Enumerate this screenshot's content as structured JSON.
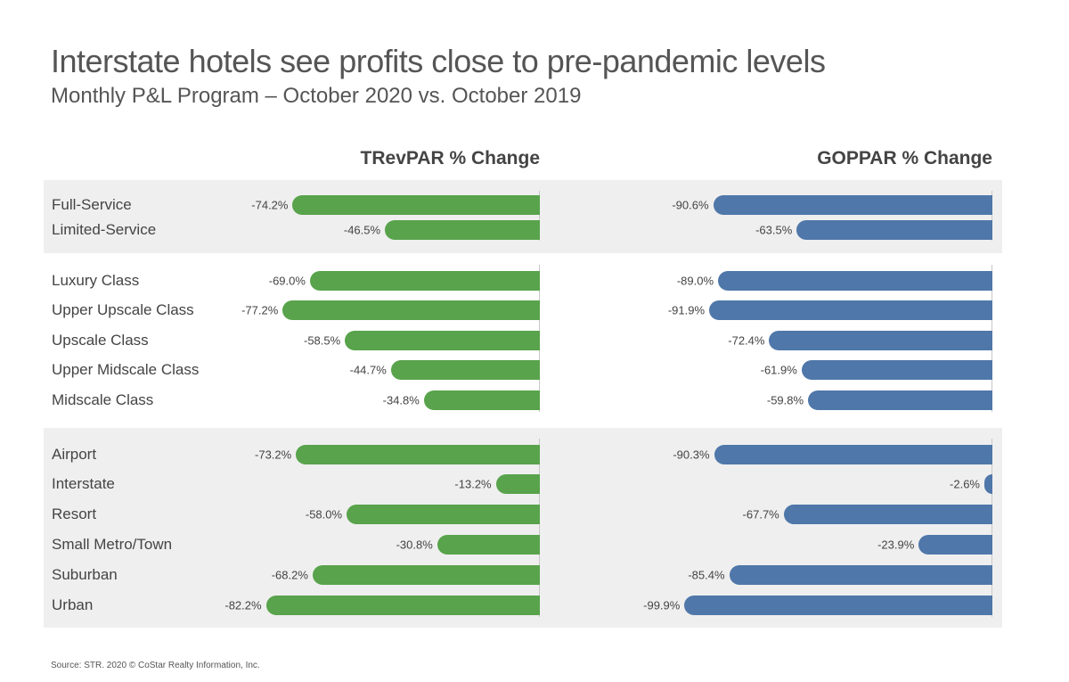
{
  "header": {
    "title": "Interstate hotels see profits close to pre-pandemic levels",
    "subtitle": "Monthly P&L Program – October 2020 vs. October 2019"
  },
  "panels": {
    "left_title": "TRevPAR % Change",
    "right_title": "GOPPAR % Change"
  },
  "footer": {
    "source": "Source: STR. 2020 © CoStar Realty Information, Inc."
  },
  "colors": {
    "trevpar": "#58a34b",
    "goppar": "#4f77a9",
    "band": "#efefef"
  },
  "chart_data": {
    "type": "bar",
    "orientation": "horizontal",
    "categories": [
      "Full-Service",
      "Limited-Service",
      "Luxury Class",
      "Upper Upscale Class",
      "Upscale Class",
      "Upper Midscale Class",
      "Midscale Class",
      "Airport",
      "Interstate",
      "Resort",
      "Small Metro/Town",
      "Suburban",
      "Urban"
    ],
    "groups": [
      {
        "categories": [
          "Full-Service",
          "Limited-Service"
        ]
      },
      {
        "categories": [
          "Luxury Class",
          "Upper Upscale Class",
          "Upscale Class",
          "Upper Midscale Class",
          "Midscale Class"
        ]
      },
      {
        "categories": [
          "Airport",
          "Interstate",
          "Resort",
          "Small Metro/Town",
          "Suburban",
          "Urban"
        ]
      }
    ],
    "series": [
      {
        "name": "TRevPAR % Change",
        "values": [
          -74.2,
          -46.5,
          -69.0,
          -77.2,
          -58.5,
          -44.7,
          -34.8,
          -73.2,
          -13.2,
          -58.0,
          -30.8,
          -68.2,
          -82.2
        ],
        "labels": [
          "-74.2%",
          "-46.5%",
          "-69.0%",
          "-77.2%",
          "-58.5%",
          "-44.7%",
          "-34.8%",
          "-73.2%",
          "-13.2%",
          "-58.0%",
          "-30.8%",
          "-68.2%",
          "-82.2%"
        ]
      },
      {
        "name": "GOPPAR % Change",
        "values": [
          -90.6,
          -63.5,
          -89.0,
          -91.9,
          -72.4,
          -61.9,
          -59.8,
          -90.3,
          -2.6,
          -67.7,
          -23.9,
          -85.4,
          -99.9
        ],
        "labels": [
          "-90.6%",
          "-63.5%",
          "-89.0%",
          "-91.9%",
          "-72.4%",
          "-61.9%",
          "-59.8%",
          "-90.3%",
          "-2.6%",
          "-67.7%",
          "-23.9%",
          "-85.4%",
          "-99.9%"
        ]
      }
    ],
    "xlim": [
      -100,
      0
    ],
    "grid": false,
    "legend": "none"
  }
}
